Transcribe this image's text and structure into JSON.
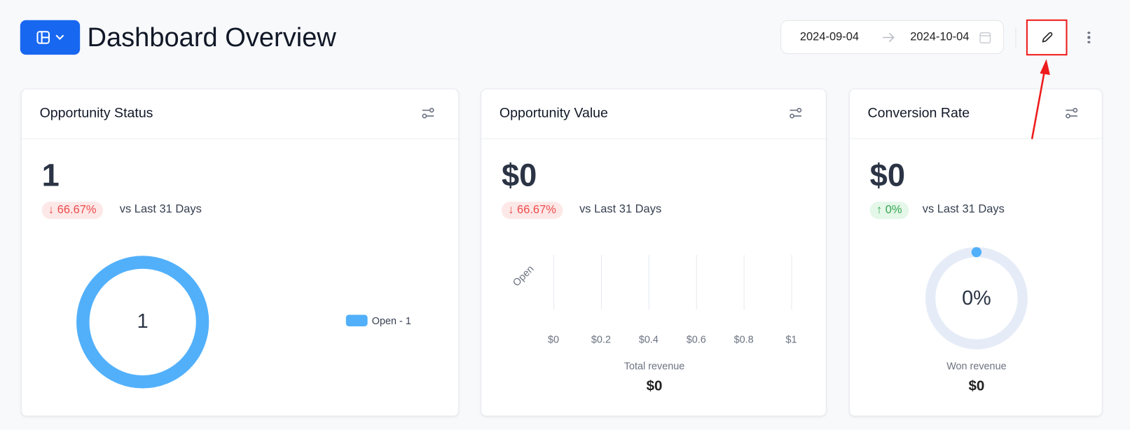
{
  "header": {
    "title": "Dashboard Overview",
    "date_from": "2024-09-04",
    "date_to": "2024-10-04"
  },
  "colors": {
    "primary": "#1867f0",
    "donut": "#52b0fb",
    "down": "#ee4b4b",
    "up": "#34a853",
    "annotation": "#ee1c1c"
  },
  "cards": [
    {
      "title": "Opportunity Status",
      "value": "1",
      "change": "66.67%",
      "direction": "down",
      "compare": "vs Last 31 Days",
      "donut_center": "1",
      "legend": "Open - 1"
    },
    {
      "title": "Opportunity Value",
      "value": "$0",
      "change": "66.67%",
      "direction": "down",
      "compare": "vs Last 31 Days",
      "category": "Open",
      "ticks": [
        "$0",
        "$0.2",
        "$0.4",
        "$0.6",
        "$0.8",
        "$1"
      ],
      "footer_label": "Total revenue",
      "footer_value": "$0"
    },
    {
      "title": "Conversion Rate",
      "value": "$0",
      "change": "0%",
      "direction": "up",
      "compare": "vs Last 31 Days",
      "gauge_label": "0%",
      "gauge_percent": 0,
      "footer_label": "Won revenue",
      "footer_value": "$0"
    }
  ],
  "chart_data": {
    "type": "bar",
    "categories": [
      "Open"
    ],
    "values": [
      0
    ],
    "xlim": [
      0,
      1
    ],
    "orientation": "horizontal"
  }
}
